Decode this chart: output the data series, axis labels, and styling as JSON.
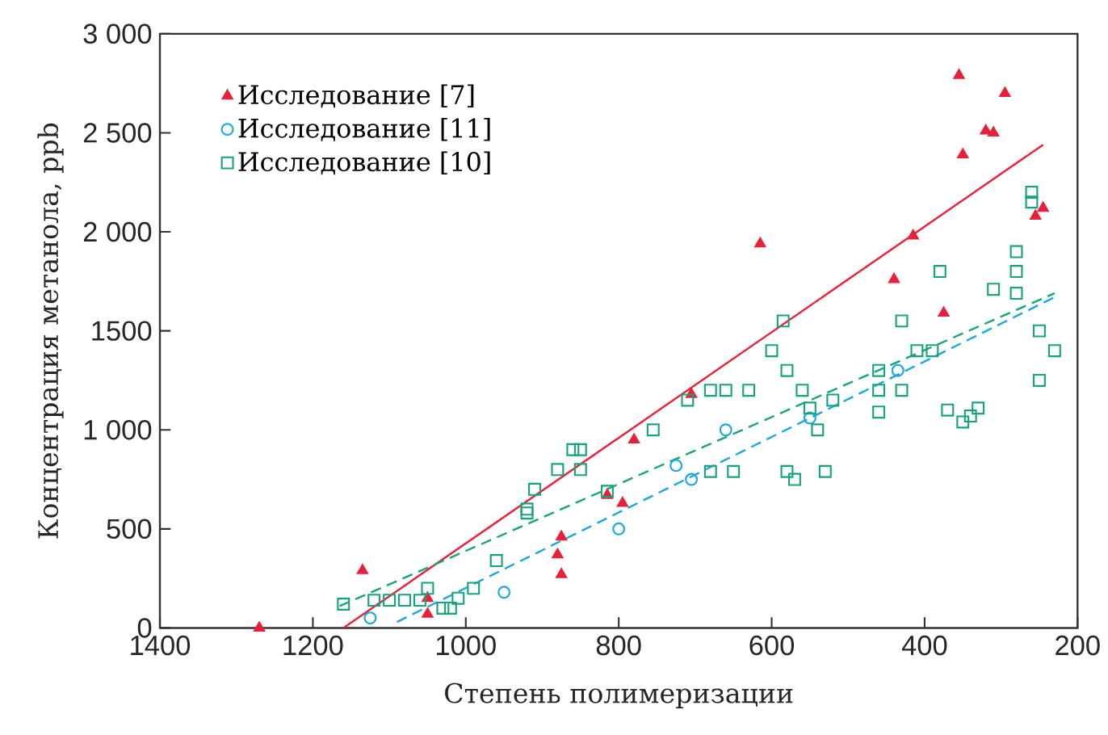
{
  "chart_data": {
    "type": "scatter",
    "xlabel": "Степень полимеризации",
    "ylabel": "Концентрация метанола, ppb",
    "xlim": [
      1400,
      200
    ],
    "ylim": [
      0,
      3000
    ],
    "xticks": [
      1400,
      1200,
      1000,
      800,
      600,
      400,
      200
    ],
    "yticks": [
      {
        "value": 0,
        "label": "0"
      },
      {
        "value": 500,
        "label": "500"
      },
      {
        "value": 1000,
        "label": "1 000"
      },
      {
        "value": 1500,
        "label": "1500"
      },
      {
        "value": 2000,
        "label": "2 000"
      },
      {
        "value": 2500,
        "label": "2 500"
      },
      {
        "value": 3000,
        "label": "3 000"
      }
    ],
    "grid": false,
    "legend": "top left",
    "series": [
      {
        "name": "Исследование [7]",
        "marker": "triangle",
        "color": "#e8203a",
        "x": [
          1270,
          1135,
          1050,
          1050,
          880,
          875,
          875,
          815,
          795,
          780,
          705,
          615,
          440,
          415,
          375,
          355,
          350,
          320,
          310,
          295,
          255,
          245
        ],
        "values": [
          0,
          290,
          150,
          70,
          370,
          460,
          270,
          670,
          630,
          950,
          1180,
          1940,
          1760,
          1980,
          1590,
          2790,
          2390,
          2510,
          2500,
          2700,
          2080,
          2120
        ]
      },
      {
        "name": "Исследование [11]",
        "marker": "circle",
        "color": "#1aa7e0",
        "x": [
          1125,
          950,
          800,
          725,
          705,
          660,
          550,
          435
        ],
        "values": [
          50,
          180,
          500,
          820,
          750,
          1000,
          1060,
          1300
        ]
      },
      {
        "name": "Исследование [10]",
        "marker": "square",
        "color": "#16a57a",
        "x": [
          1160,
          1120,
          1100,
          1080,
          1060,
          1050,
          1030,
          1020,
          1010,
          990,
          960,
          920,
          920,
          910,
          880,
          860,
          850,
          850,
          815,
          755,
          710,
          680,
          660,
          630,
          680,
          650,
          600,
          585,
          580,
          580,
          570,
          560,
          550,
          540,
          530,
          520,
          460,
          460,
          460,
          430,
          430,
          410,
          390,
          380,
          370,
          350,
          340,
          330,
          310,
          280,
          280,
          280,
          260,
          260,
          250,
          250,
          230
        ],
        "values": [
          120,
          140,
          140,
          140,
          140,
          200,
          100,
          100,
          150,
          200,
          340,
          600,
          580,
          700,
          800,
          900,
          900,
          800,
          690,
          1000,
          1150,
          1200,
          1200,
          1200,
          790,
          790,
          1400,
          1550,
          1300,
          790,
          750,
          1200,
          1110,
          1000,
          790,
          1150,
          1300,
          1200,
          1090,
          1550,
          1200,
          1400,
          1400,
          1800,
          1100,
          1040,
          1070,
          1110,
          1710,
          1900,
          1800,
          1690,
          2200,
          2150,
          1500,
          1250,
          1400
        ]
      },
      {
        "type": "line",
        "line_style": "solid",
        "color": "#e8203a",
        "x": [
          1160,
          245
        ],
        "values": [
          0,
          2440
        ]
      },
      {
        "type": "line",
        "line_style": "dashed",
        "color": "#1aa7e0",
        "x": [
          1090,
          230
        ],
        "values": [
          30,
          1670
        ]
      },
      {
        "type": "line",
        "line_style": "dashed",
        "color": "#16a57a",
        "x": [
          1165,
          230
        ],
        "values": [
          110,
          1690
        ]
      }
    ]
  }
}
